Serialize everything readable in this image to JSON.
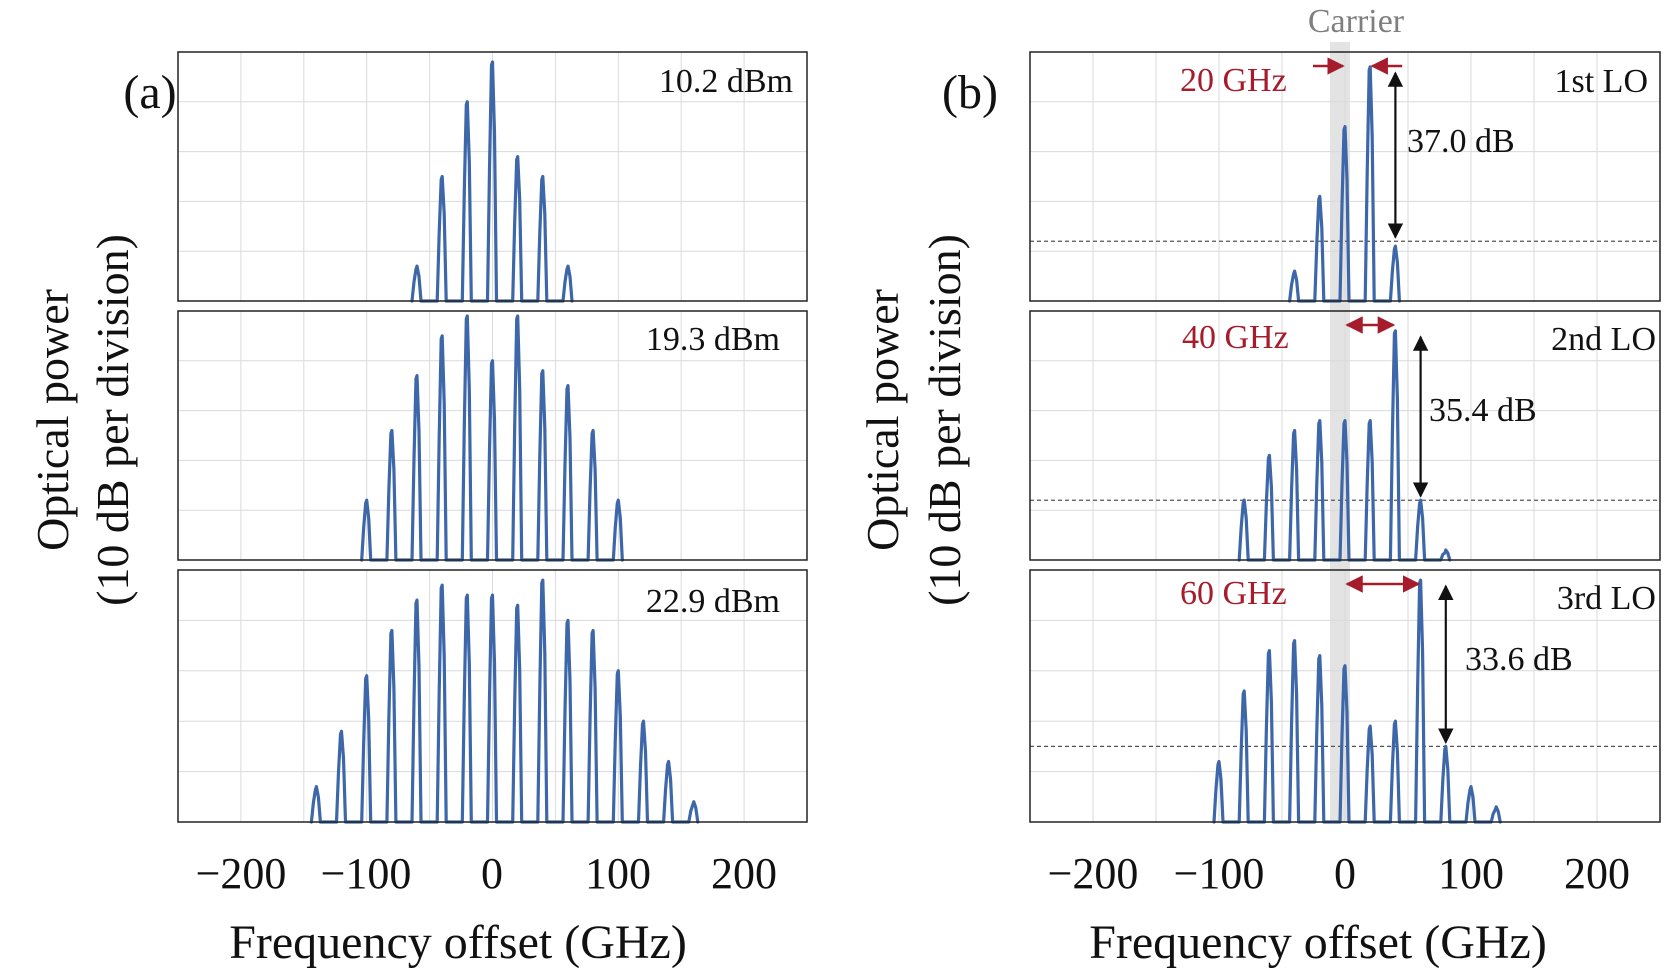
{
  "chart_data": [
    {
      "type": "line",
      "panel_label": "(a)",
      "ylabel_line1": "Optical power",
      "ylabel_line2": "(10 dB per division)",
      "xlabel": "Frequency offset (GHz)",
      "xlim": [
        -250,
        250
      ],
      "xticks": [
        -200,
        -100,
        0,
        100,
        200
      ],
      "xtick_labels": [
        "−200",
        "−100",
        "0",
        "100",
        "200"
      ],
      "ylim_divisions": [
        0,
        5
      ],
      "grid": true,
      "series": [
        {
          "name": "10.2 dBm",
          "label": "10.2 dBm",
          "line_spacing_ghz": 20,
          "lines": [
            {
              "x": -60,
              "y": 0.7
            },
            {
              "x": -40,
              "y": 2.5
            },
            {
              "x": -20,
              "y": 4.0
            },
            {
              "x": 0,
              "y": 4.8
            },
            {
              "x": 20,
              "y": 2.9
            },
            {
              "x": 40,
              "y": 2.5
            },
            {
              "x": 60,
              "y": 0.7
            }
          ]
        },
        {
          "name": "19.3 dBm",
          "label": "19.3 dBm",
          "line_spacing_ghz": 20,
          "lines": [
            {
              "x": -100,
              "y": 1.2
            },
            {
              "x": -80,
              "y": 2.6
            },
            {
              "x": -60,
              "y": 3.7
            },
            {
              "x": -40,
              "y": 4.5
            },
            {
              "x": -20,
              "y": 4.9
            },
            {
              "x": 0,
              "y": 4.0
            },
            {
              "x": 20,
              "y": 4.9
            },
            {
              "x": 40,
              "y": 3.8
            },
            {
              "x": 60,
              "y": 3.5
            },
            {
              "x": 80,
              "y": 2.6
            },
            {
              "x": 100,
              "y": 1.2
            }
          ]
        },
        {
          "name": "22.9 dBm",
          "label": "22.9 dBm",
          "line_spacing_ghz": 20,
          "lines": [
            {
              "x": -140,
              "y": 0.7
            },
            {
              "x": -120,
              "y": 1.8
            },
            {
              "x": -100,
              "y": 2.9
            },
            {
              "x": -80,
              "y": 3.8
            },
            {
              "x": -60,
              "y": 4.4
            },
            {
              "x": -40,
              "y": 4.7
            },
            {
              "x": -20,
              "y": 4.5
            },
            {
              "x": 0,
              "y": 4.5
            },
            {
              "x": 20,
              "y": 4.3
            },
            {
              "x": 40,
              "y": 4.8
            },
            {
              "x": 60,
              "y": 4.0
            },
            {
              "x": 80,
              "y": 3.8
            },
            {
              "x": 100,
              "y": 3.0
            },
            {
              "x": 120,
              "y": 2.0
            },
            {
              "x": 140,
              "y": 1.2
            },
            {
              "x": 160,
              "y": 0.4
            }
          ]
        }
      ]
    },
    {
      "type": "line",
      "panel_label": "(b)",
      "ylabel_line1": "Optical power",
      "ylabel_line2": "(10 dB per division)",
      "xlabel": "Frequency offset (GHz)",
      "xlim": [
        -250,
        250
      ],
      "xticks": [
        -200,
        -100,
        0,
        100,
        200
      ],
      "xtick_labels": [
        "−200",
        "−100",
        "0",
        "100",
        "200"
      ],
      "ylim_divisions": [
        0,
        5
      ],
      "grid": true,
      "carrier_label": "Carrier",
      "carrier_band_ghz": [
        -8,
        8
      ],
      "series": [
        {
          "name": "1st LO",
          "label": "1st LO",
          "offset_label": "20 GHz",
          "suppression_label": "37.0 dB",
          "lo_freq_ghz": 20,
          "suppressed_freq_ghz": 40,
          "floor_level": 1.2,
          "lines": [
            {
              "x": -40,
              "y": 0.6
            },
            {
              "x": -20,
              "y": 2.1
            },
            {
              "x": 0,
              "y": 3.5
            },
            {
              "x": 20,
              "y": 4.7
            },
            {
              "x": 40,
              "y": 1.1
            }
          ]
        },
        {
          "name": "2nd LO",
          "label": "2nd LO",
          "offset_label": "40 GHz",
          "suppression_label": "35.4 dB",
          "lo_freq_ghz": 40,
          "suppressed_freq_ghz": 60,
          "floor_level": 1.2,
          "lines": [
            {
              "x": -80,
              "y": 1.2
            },
            {
              "x": -60,
              "y": 2.1
            },
            {
              "x": -40,
              "y": 2.6
            },
            {
              "x": -20,
              "y": 2.8
            },
            {
              "x": 0,
              "y": 2.8
            },
            {
              "x": 20,
              "y": 2.8
            },
            {
              "x": 40,
              "y": 4.6
            },
            {
              "x": 60,
              "y": 1.2
            },
            {
              "x": 80,
              "y": 0.2
            }
          ]
        },
        {
          "name": "3rd LO",
          "label": "3rd LO",
          "offset_label": "60 GHz",
          "suppression_label": "33.6 dB",
          "lo_freq_ghz": 60,
          "suppressed_freq_ghz": 80,
          "floor_level": 1.5,
          "lines": [
            {
              "x": -100,
              "y": 1.2
            },
            {
              "x": -80,
              "y": 2.6
            },
            {
              "x": -60,
              "y": 3.4
            },
            {
              "x": -40,
              "y": 3.6
            },
            {
              "x": -20,
              "y": 3.3
            },
            {
              "x": 0,
              "y": 3.1
            },
            {
              "x": 20,
              "y": 1.9
            },
            {
              "x": 40,
              "y": 2.0
            },
            {
              "x": 60,
              "y": 4.8
            },
            {
              "x": 80,
              "y": 1.5
            },
            {
              "x": 100,
              "y": 0.7
            },
            {
              "x": 120,
              "y": 0.3
            }
          ]
        }
      ]
    }
  ],
  "colors": {
    "trace": "#3d67a8",
    "annotation_red": "#a61c2b",
    "annotation_black": "#111111",
    "carrier_gray": "#7f7f7f"
  }
}
